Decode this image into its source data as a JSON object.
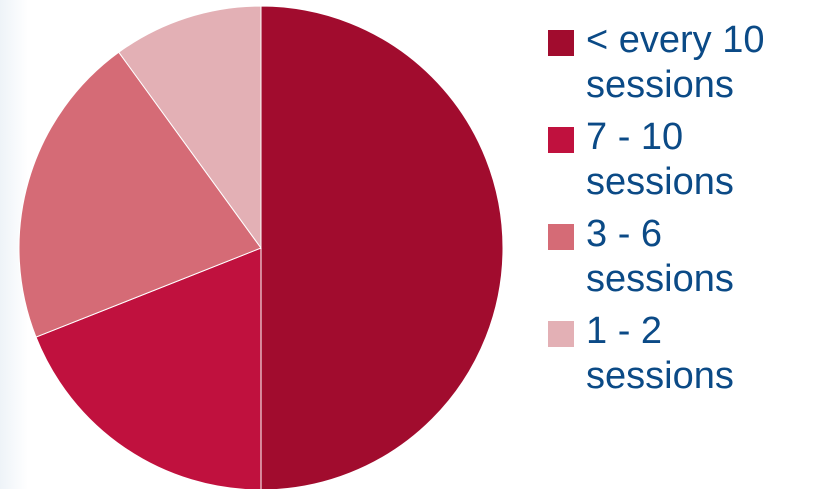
{
  "chart_data": {
    "type": "pie",
    "title": "",
    "slices": [
      {
        "label": "< every 10 sessions",
        "value": 50,
        "color": "#a10c2e"
      },
      {
        "label": "7 - 10 sessions",
        "value": 19,
        "color": "#c0113e"
      },
      {
        "label": "3 - 6 sessions",
        "value": 21,
        "color": "#d56b76"
      },
      {
        "label": "1 - 2 sessions",
        "value": 10,
        "color": "#e3b0b5"
      }
    ],
    "legend": {
      "position": "right",
      "items": [
        {
          "line1": "< every 10",
          "line2": "sessions",
          "color": "#a10c2e"
        },
        {
          "line1": "7 - 10",
          "line2": "sessions",
          "color": "#c0113e"
        },
        {
          "line1": "3 - 6",
          "line2": "sessions",
          "color": "#d56b76"
        },
        {
          "line1": "1 - 2",
          "line2": "sessions",
          "color": "#e3b0b5"
        }
      ]
    }
  },
  "colors": {
    "legend_text": "#0b4a86",
    "background": "#ffffff"
  }
}
